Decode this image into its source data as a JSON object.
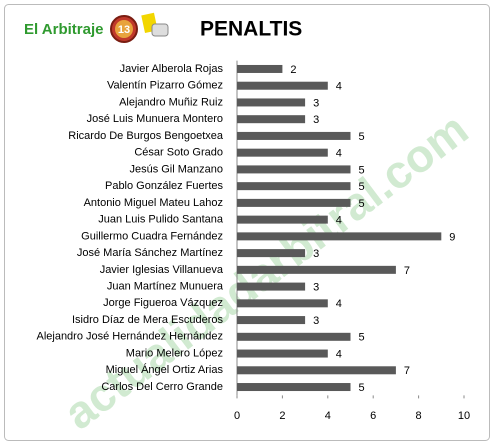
{
  "brand": "El Arbitraje",
  "badge": "13",
  "watermark": "actualidadarbitral.com",
  "chart_data": {
    "type": "bar",
    "orientation": "horizontal",
    "title": "PENALTIS",
    "categories": [
      "Javier Alberola Rojas",
      "Valentín Pizarro Gómez",
      "Alejandro Muñiz Ruiz",
      "José Luis Munuera Montero",
      "Ricardo De Burgos Bengoetxea",
      "César Soto Grado",
      "Jesús Gil Manzano",
      "Pablo González Fuertes",
      "Antonio Miguel Mateu Lahoz",
      "Juan Luis Pulido Santana",
      "Guillermo Cuadra Fernández",
      "José María Sánchez Martínez",
      "Javier Iglesias Villanueva",
      "Juan Martínez Munuera",
      "Jorge Figueroa Vázquez",
      "Isidro Díaz de Mera Escuderos",
      "Alejandro José Hernández Hernández",
      "Mario Melero López",
      "Miguel Ángel Ortiz Arias",
      "Carlos Del Cerro Grande"
    ],
    "values": [
      2,
      4,
      3,
      3,
      5,
      4,
      5,
      5,
      5,
      4,
      9,
      3,
      7,
      3,
      4,
      3,
      5,
      4,
      7,
      5
    ],
    "color": "#595959",
    "xlim": [
      0,
      10
    ],
    "xticks": [
      0,
      2,
      4,
      6,
      8,
      10
    ],
    "grid": false
  }
}
